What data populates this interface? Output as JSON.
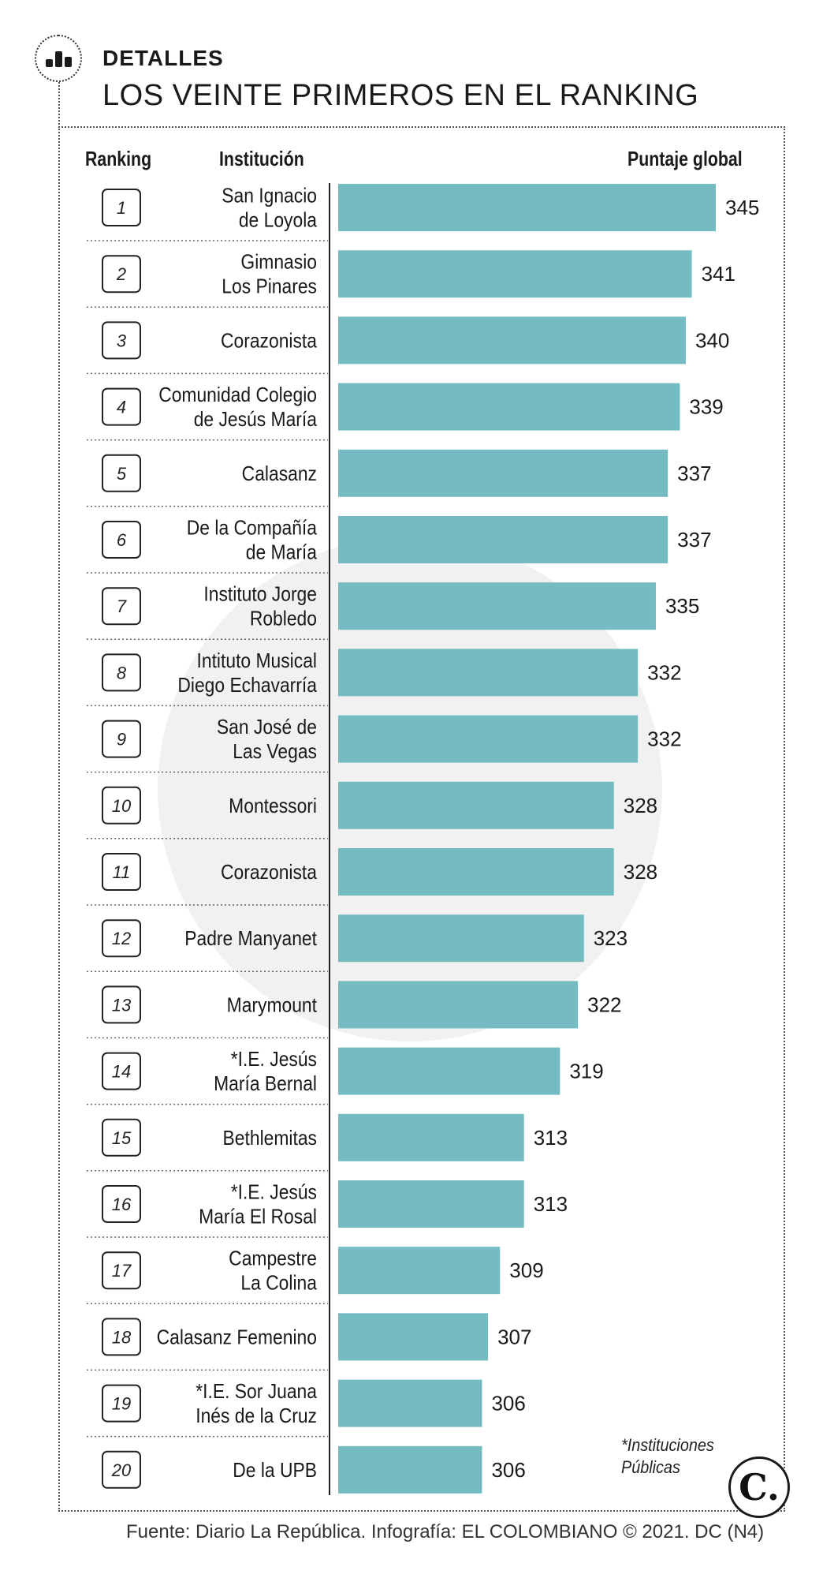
{
  "header": {
    "kicker": "DETALLES",
    "title": "LOS VEINTE PRIMEROS EN EL RANKING"
  },
  "columns": {
    "ranking": "Ranking",
    "institution": "Institución",
    "score": "Puntaje global"
  },
  "chart_data": {
    "type": "bar",
    "orientation": "horizontal",
    "categories": [
      [
        "San Ignacio",
        "de Loyola"
      ],
      [
        "Gimnasio",
        "Los Pinares"
      ],
      [
        "Corazonista"
      ],
      [
        "Comunidad Colegio",
        "de Jesús María"
      ],
      [
        "Calasanz"
      ],
      [
        "De la Compañía",
        "de María"
      ],
      [
        "Instituto Jorge",
        "Robledo"
      ],
      [
        "Intituto Musical",
        "Diego Echavarría"
      ],
      [
        "San José de",
        "Las Vegas"
      ],
      [
        "Montessori"
      ],
      [
        "Corazonista"
      ],
      [
        "Padre Manyanet"
      ],
      [
        "Marymount"
      ],
      [
        "*I.E. Jesús",
        "María Bernal"
      ],
      [
        "Bethlemitas"
      ],
      [
        "*I.E. Jesús",
        "María El Rosal"
      ],
      [
        "Campestre",
        "La Colina"
      ],
      [
        "Calasanz Femenino"
      ],
      [
        "*I.E. Sor Juana",
        "Inés de la Cruz"
      ],
      [
        "De la UPB"
      ]
    ],
    "ranks": [
      "1",
      "2",
      "3",
      "4",
      "5",
      "6",
      "7",
      "8",
      "9",
      "10",
      "11",
      "12",
      "13",
      "14",
      "15",
      "16",
      "17",
      "18",
      "19",
      "20"
    ],
    "values": [
      345,
      341,
      340,
      339,
      337,
      337,
      335,
      332,
      332,
      328,
      328,
      323,
      322,
      319,
      313,
      313,
      309,
      307,
      306,
      306
    ],
    "xlim": [
      282,
      345
    ],
    "bar_color": "#74bcc2",
    "grid": false,
    "legend": "none"
  },
  "footnote": [
    "*Instituciones",
    "Públicas"
  ],
  "logo": "C.",
  "source": "Fuente: Diario La República. Infografía: EL COLOMBIANO © 2021. DC (N4)"
}
